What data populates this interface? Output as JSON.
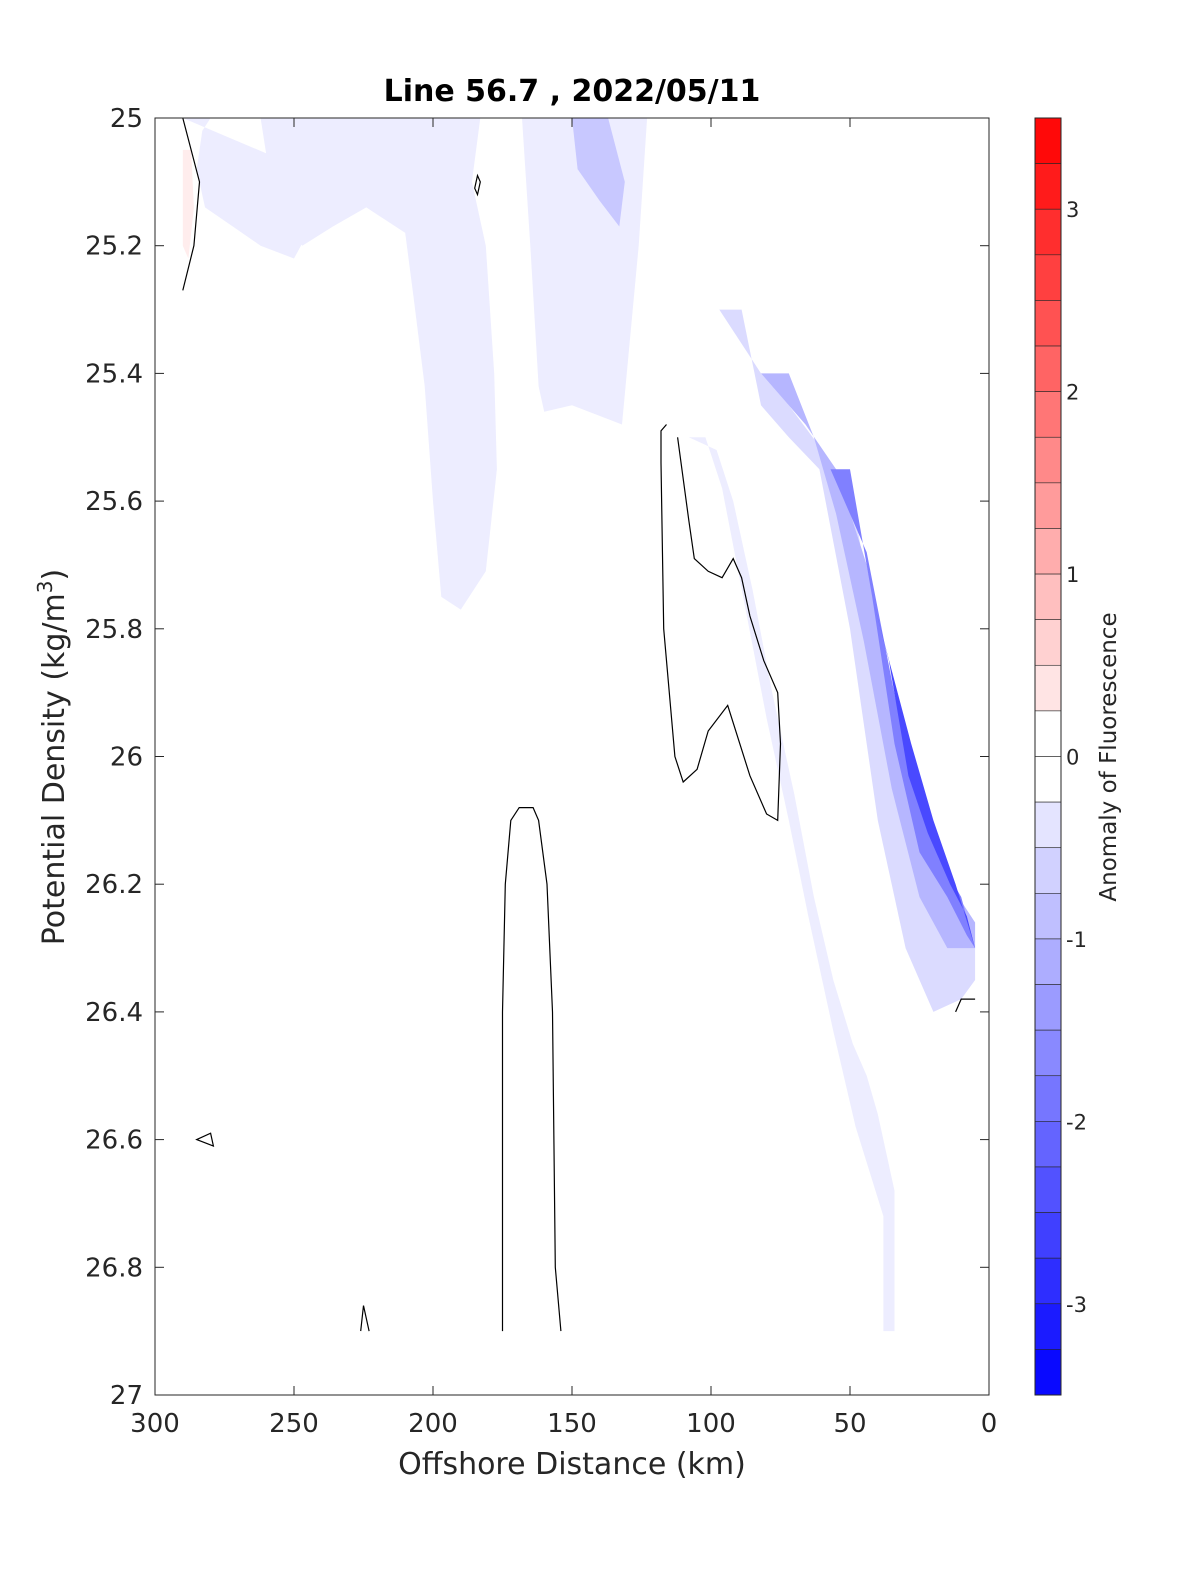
{
  "chart_data": {
    "type": "contour",
    "title": "Line 56.7 , 2022/05/11",
    "xlabel": "Offshore Distance (km)",
    "ylabel": {
      "base": "Potential Density (kg/m",
      "sup": "3",
      "close": ")"
    },
    "xlim": [
      300,
      0
    ],
    "x_direction": "reversed",
    "ylim": [
      25,
      27
    ],
    "y_direction": "reversed (density increases downward)",
    "x_ticks": [
      "300",
      "250",
      "200",
      "150",
      "100",
      "50",
      "0"
    ],
    "x_tick_values": [
      300,
      250,
      200,
      150,
      100,
      50,
      0
    ],
    "y_ticks": [
      "25",
      "25.2",
      "25.4",
      "25.6",
      "25.8",
      "26",
      "26.2",
      "26.4",
      "26.6",
      "26.8",
      "27"
    ],
    "y_tick_values": [
      25,
      25.2,
      25.4,
      25.6,
      25.8,
      26,
      26.2,
      26.4,
      26.6,
      26.8,
      27
    ],
    "grid": false,
    "colorbar": {
      "label": "Anomaly of Fluorescence",
      "range": [
        -3.5,
        3.5
      ],
      "level_step": 0.25,
      "ticks": [
        "3",
        "2",
        "1",
        "0",
        "-1",
        "-2",
        "-3"
      ],
      "tick_values": [
        3,
        2,
        1,
        0,
        -1,
        -2,
        -3
      ],
      "colormap": "blue-white-red diverging",
      "positive_color": "#ff0000",
      "zero_color": "#ffffff",
      "negative_color": "#0000ff"
    },
    "contour_line": {
      "level": 0,
      "color": "#000000"
    },
    "filled_regions": [
      {
        "name": "offshore-upper-negative",
        "level": -0.25,
        "points": [
          [
            290,
            25
          ],
          [
            262,
            25
          ],
          [
            257,
            25.14
          ],
          [
            247,
            25.2
          ],
          [
            236,
            25.17
          ],
          [
            224,
            25.14
          ],
          [
            210,
            25.18
          ],
          [
            207,
            25.28
          ],
          [
            203,
            25.42
          ],
          [
            200,
            25.6
          ],
          [
            197,
            25.75
          ],
          [
            190,
            25.77
          ],
          [
            181,
            25.71
          ],
          [
            177,
            25.55
          ],
          [
            178,
            25.4
          ],
          [
            181,
            25.2
          ],
          [
            186,
            25.1
          ],
          [
            183,
            25
          ],
          [
            168,
            25
          ],
          [
            165,
            25.2
          ],
          [
            162,
            25.42
          ],
          [
            160,
            25.46
          ],
          [
            150,
            25.45
          ],
          [
            132,
            25.48
          ],
          [
            126,
            25.2
          ],
          [
            123,
            25
          ],
          [
            280,
            25
          ],
          [
            283,
            25.02
          ],
          [
            285,
            25.08
          ],
          [
            282,
            25.14
          ],
          [
            272,
            25.17
          ],
          [
            262,
            25.2
          ],
          [
            250,
            25.22
          ],
          [
            245,
            25.18
          ],
          [
            225,
            25.12
          ]
        ]
      },
      {
        "name": "nearshore-band-1",
        "level": -0.25,
        "points": [
          [
            108,
            25.5
          ],
          [
            102,
            25.5
          ],
          [
            96,
            25.58
          ],
          [
            88,
            25.76
          ],
          [
            80,
            25.94
          ],
          [
            72,
            26.1
          ],
          [
            65,
            26.25
          ],
          [
            56,
            26.43
          ],
          [
            48,
            26.58
          ],
          [
            38,
            26.72
          ],
          [
            38,
            26.9
          ],
          [
            34,
            26.9
          ],
          [
            34,
            26.68
          ],
          [
            40,
            26.56
          ],
          [
            44,
            26.5
          ],
          [
            49,
            26.45
          ],
          [
            56,
            26.35
          ],
          [
            63,
            26.22
          ],
          [
            70,
            26.06
          ],
          [
            78,
            25.9
          ],
          [
            85,
            25.74
          ],
          [
            92,
            25.6
          ],
          [
            98,
            25.52
          ]
        ]
      },
      {
        "name": "nearshore-band-2",
        "level": -0.5,
        "points": [
          [
            97,
            25.3
          ],
          [
            89,
            25.3
          ],
          [
            82,
            25.45
          ],
          [
            72,
            25.5
          ],
          [
            61,
            25.55
          ],
          [
            50,
            25.8
          ],
          [
            40,
            26.1
          ],
          [
            30,
            26.3
          ],
          [
            20,
            26.4
          ],
          [
            10,
            26.38
          ],
          [
            5,
            26.35
          ],
          [
            5,
            26.3
          ],
          [
            15,
            26.27
          ],
          [
            25,
            26.15
          ],
          [
            35,
            25.95
          ],
          [
            47,
            25.65
          ],
          [
            60,
            25.52
          ],
          [
            72,
            25.45
          ],
          [
            82,
            25.4
          ]
        ]
      },
      {
        "name": "nearshore-band-3",
        "level": -1.0,
        "points": [
          [
            82,
            25.4
          ],
          [
            72,
            25.4
          ],
          [
            63,
            25.5
          ],
          [
            55,
            25.62
          ],
          [
            45,
            25.82
          ],
          [
            35,
            26.05
          ],
          [
            25,
            26.22
          ],
          [
            15,
            26.3
          ],
          [
            5,
            26.3
          ],
          [
            5,
            26.26
          ],
          [
            14,
            26.2
          ],
          [
            24,
            26.1
          ],
          [
            33,
            25.95
          ],
          [
            44,
            25.7
          ],
          [
            55,
            25.55
          ],
          [
            66,
            25.48
          ]
        ]
      },
      {
        "name": "nearshore-band-4",
        "level": -1.75,
        "points": [
          [
            57,
            25.55
          ],
          [
            50,
            25.55
          ],
          [
            42,
            25.75
          ],
          [
            34,
            25.98
          ],
          [
            25,
            26.15
          ],
          [
            15,
            26.22
          ],
          [
            8,
            26.28
          ],
          [
            5,
            26.3
          ],
          [
            10,
            26.22
          ],
          [
            18,
            26.16
          ],
          [
            27,
            26.05
          ],
          [
            35,
            25.88
          ],
          [
            44,
            25.68
          ]
        ]
      },
      {
        "name": "nearshore-band-5",
        "level": -2.5,
        "points": [
          [
            42,
            25.75
          ],
          [
            36,
            25.85
          ],
          [
            29,
            26.03
          ],
          [
            22,
            26.12
          ],
          [
            14,
            26.2
          ],
          [
            8,
            26.25
          ],
          [
            5,
            26.3
          ],
          [
            12,
            26.2
          ],
          [
            20,
            26.1
          ],
          [
            28,
            25.98
          ]
        ]
      },
      {
        "name": "offshore-core-negative",
        "level": -0.75,
        "points": [
          [
            150,
            25
          ],
          [
            137,
            25
          ],
          [
            131,
            25.1
          ],
          [
            133,
            25.17
          ],
          [
            140,
            25.13
          ],
          [
            148,
            25.08
          ]
        ]
      },
      {
        "name": "west-edge-positive",
        "level": 0.25,
        "points": [
          [
            290,
            25.05
          ],
          [
            287,
            25.05
          ],
          [
            286,
            25.14
          ],
          [
            288,
            25.22
          ],
          [
            290,
            25.2
          ]
        ]
      }
    ],
    "contour_lines": [
      {
        "name": "zero-line-west-edge",
        "level": 0,
        "closed": false,
        "points": [
          [
            290,
            25
          ],
          [
            284,
            25.1
          ],
          [
            286,
            25.2
          ],
          [
            290,
            25.27
          ]
        ]
      },
      {
        "name": "zero-line-mid-upper",
        "level": 0,
        "closed": false,
        "points": [
          [
            116,
            25.48
          ],
          [
            118,
            25.49
          ],
          [
            118,
            25.54
          ],
          [
            117,
            25.8
          ],
          [
            113,
            26
          ],
          [
            110,
            26.04
          ],
          [
            105,
            26.02
          ],
          [
            101,
            25.96
          ],
          [
            94,
            25.92
          ],
          [
            86,
            26.03
          ],
          [
            80,
            26.09
          ],
          [
            76,
            26.1
          ],
          [
            75,
            25.98
          ],
          [
            76,
            25.9
          ],
          [
            81,
            25.85
          ],
          [
            86,
            25.78
          ],
          [
            89,
            25.72
          ],
          [
            92,
            25.69
          ],
          [
            96,
            25.72
          ],
          [
            101,
            25.71
          ],
          [
            106,
            25.69
          ],
          [
            108,
            25.63
          ],
          [
            112,
            25.5
          ]
        ]
      },
      {
        "name": "zero-line-mid-lower",
        "level": 0,
        "closed": false,
        "points": [
          [
            175,
            26.9
          ],
          [
            175,
            26.4
          ],
          [
            174,
            26.2
          ],
          [
            172,
            26.1
          ],
          [
            169,
            26.08
          ],
          [
            164,
            26.08
          ],
          [
            162,
            26.1
          ],
          [
            159,
            26.2
          ],
          [
            157,
            26.4
          ],
          [
            156,
            26.8
          ],
          [
            154,
            26.9
          ]
        ]
      },
      {
        "name": "zero-line-small-1",
        "level": 0,
        "closed": true,
        "points": [
          [
            184,
            25.09
          ],
          [
            185,
            25.11
          ],
          [
            184,
            25.12
          ],
          [
            183,
            25.1
          ]
        ]
      },
      {
        "name": "zero-line-small-2",
        "level": 0,
        "closed": true,
        "points": [
          [
            285,
            26.6
          ],
          [
            280,
            26.59
          ],
          [
            279,
            26.61
          ]
        ]
      },
      {
        "name": "zero-line-small-3",
        "level": 0,
        "closed": false,
        "points": [
          [
            226,
            26.9
          ],
          [
            225,
            26.86
          ],
          [
            223,
            26.9
          ]
        ]
      },
      {
        "name": "zero-line-nearshore-bottom",
        "level": 0,
        "closed": false,
        "points": [
          [
            12,
            26.4
          ],
          [
            10,
            26.38
          ],
          [
            5,
            26.38
          ]
        ]
      }
    ]
  }
}
